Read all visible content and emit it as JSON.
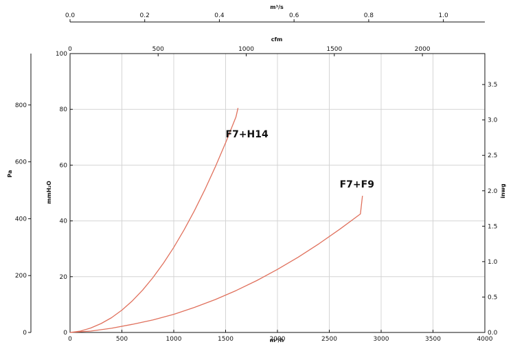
{
  "chart_data": {
    "type": "line",
    "axes": {
      "bottom": {
        "label": "m³/h",
        "range": [
          0,
          4000
        ],
        "ticks": [
          0,
          500,
          1000,
          1500,
          2000,
          2500,
          3000,
          3500,
          4000
        ],
        "tick_labels": [
          "0",
          "500",
          "1000",
          "1500",
          "2000",
          "2500",
          "3000",
          "3500",
          "4000"
        ]
      },
      "top_cfm": {
        "label": "cfm",
        "range": [
          0,
          2354.4
        ],
        "ticks": [
          0,
          500,
          1000,
          1500,
          2000
        ],
        "tick_labels": [
          "0",
          "500",
          "1000",
          "1500",
          "2000"
        ]
      },
      "top_m3s": {
        "label": "m³/s",
        "range": [
          0,
          1.1111
        ],
        "ticks": [
          0.0,
          0.2,
          0.4,
          0.6,
          0.8,
          1.0
        ],
        "tick_labels": [
          "0.0",
          "0.2",
          "0.4",
          "0.6",
          "0.8",
          "1.0"
        ]
      },
      "left_mmh2o": {
        "label": "mmH₂O",
        "range": [
          0,
          100
        ],
        "ticks": [
          0,
          20,
          40,
          60,
          80,
          100
        ],
        "tick_labels": [
          "0",
          "20",
          "40",
          "60",
          "80",
          "100"
        ]
      },
      "left_pa": {
        "label": "Pa",
        "range": [
          0,
          980.7
        ],
        "ticks": [
          0,
          200,
          400,
          600,
          800
        ],
        "tick_labels": [
          "0",
          "200",
          "400",
          "600",
          "800"
        ]
      },
      "right_inwg": {
        "label": "inwg",
        "range": [
          0,
          3.937
        ],
        "ticks": [
          0.0,
          0.5,
          1.0,
          1.5,
          2.0,
          2.5,
          3.0,
          3.5
        ],
        "tick_labels": [
          "0.0",
          "0.5",
          "1.0",
          "1.5",
          "2.0",
          "2.5",
          "3.0",
          "3.5"
        ]
      }
    },
    "grid": true,
    "series": [
      {
        "name": "F7+H14",
        "color": "#e0705c",
        "x": [
          0,
          100,
          200,
          300,
          400,
          500,
          600,
          700,
          800,
          900,
          1000,
          1100,
          1200,
          1300,
          1400,
          1500,
          1600,
          1620
        ],
        "y": [
          0,
          0.5,
          1.6,
          3.2,
          5.3,
          8.0,
          11.3,
          15.2,
          19.7,
          24.8,
          30.5,
          36.8,
          43.7,
          51.2,
          59.3,
          68.0,
          77.3,
          80.5
        ]
      },
      {
        "name": "F7+F9",
        "color": "#e0705c",
        "x": [
          0,
          200,
          400,
          600,
          800,
          1000,
          1200,
          1400,
          1600,
          1800,
          2000,
          2200,
          2400,
          2600,
          2800,
          2820
        ],
        "y": [
          0,
          0.5,
          1.5,
          2.9,
          4.5,
          6.5,
          9.0,
          11.8,
          15.0,
          18.6,
          22.6,
          27.0,
          31.8,
          37.0,
          42.5,
          49.0
        ]
      }
    ],
    "annotations": [
      {
        "text": "F7+H14",
        "x": 1500,
        "y": 70
      },
      {
        "text": "F7+F9",
        "x": 2600,
        "y": 52
      }
    ]
  }
}
